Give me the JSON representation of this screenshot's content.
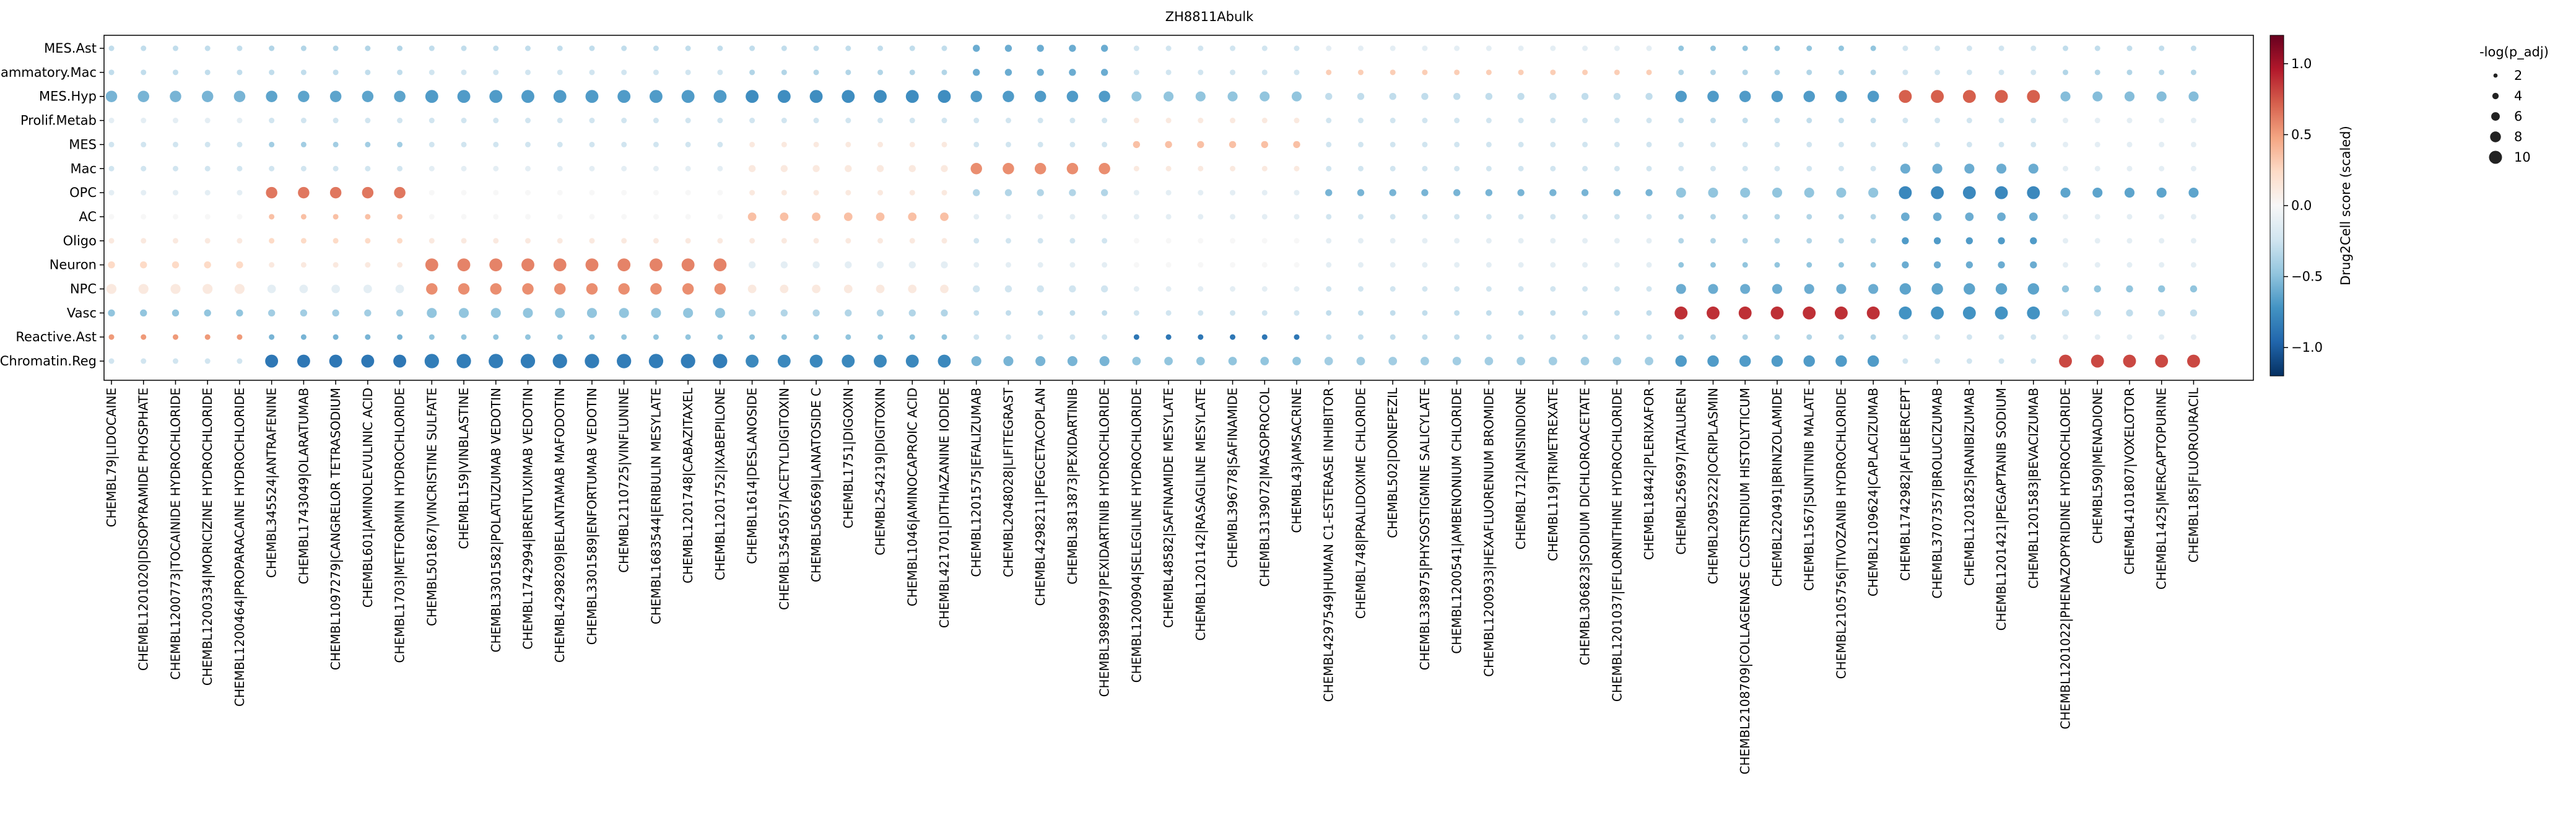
{
  "chart_data": {
    "type": "dotplot",
    "title": "ZH8811Abulk",
    "rows": [
      "MES.Ast",
      "Inflammatory.Mac",
      "MES.Hyp",
      "Prolif.Metab",
      "MES",
      "Mac",
      "OPC",
      "AC",
      "Oligo",
      "Neuron",
      "NPC",
      "Vasc",
      "Reactive.Ast",
      "Chromatin.Reg"
    ],
    "columns": [
      "CHEMBL79|LIDOCAINE",
      "CHEMBL1201020|DISOPYRAMIDE PHOSPHATE",
      "CHEMBL1200773|TOCAINIDE HYDROCHLORIDE",
      "CHEMBL1200334|MORICIZINE HYDROCHLORIDE",
      "CHEMBL1200464|PROPARACAINE HYDROCHLORIDE",
      "CHEMBL345524|ANTRAFENINE",
      "CHEMBL1743049|OLARATUMAB",
      "CHEMBL1097279|CANGRELOR TETRASODIUM",
      "CHEMBL601|AMINOLEVULINIC ACID",
      "CHEMBL1703|METFORMIN HYDROCHLORIDE",
      "CHEMBL501867|VINCRISTINE SULFATE",
      "CHEMBL159|VINBLASTINE",
      "CHEMBL3301582|POLATUZUMAB VEDOTIN",
      "CHEMBL1742994|BRENTUXIMAB VEDOTIN",
      "CHEMBL4298209|BELANTAMAB MAFODOTIN",
      "CHEMBL3301589|ENFORTUMAB VEDOTIN",
      "CHEMBL2110725|VINFLUNINE",
      "CHEMBL1683544|ERIBULIN MESYLATE",
      "CHEMBL1201748|CABAZITAXEL",
      "CHEMBL1201752|IXABEPILONE",
      "CHEMBL1614|DESLANOSIDE",
      "CHEMBL3545057|ACETYLDIGITOXIN",
      "CHEMBL506569|LANATOSIDE C",
      "CHEMBL1751|DIGOXIN",
      "CHEMBL254219|DIGITOXIN",
      "CHEMBL1046|AMINOCAPROIC ACID",
      "CHEMBL421701|DITHIAZANINE IODIDE",
      "CHEMBL1201575|EFALIZUMAB",
      "CHEMBL2048028|LIFITEGRAST",
      "CHEMBL4298211|PEGCETACOPLAN",
      "CHEMBL3813873|PEXIDARTINIB",
      "CHEMBL3989997|PEXIDARTINIB HYDROCHLORIDE",
      "CHEMBL1200904|SELEGILINE HYDROCHLORIDE",
      "CHEMBL48582|SAFINAMIDE MESYLATE",
      "CHEMBL1201142|RASAGILINE MESYLATE",
      "CHEMBL396778|SAFINAMIDE",
      "CHEMBL3139072|MASOPROCOL",
      "CHEMBL43|AMSACRINE",
      "CHEMBL4297549|HUMAN C1-ESTERASE INHIBITOR",
      "CHEMBL748|PRALIDOXIME CHLORIDE",
      "CHEMBL502|DONEPEZIL",
      "CHEMBL338975|PHYSOSTIGMINE SALICYLATE",
      "CHEMBL1200541|AMBENONIUM CHLORIDE",
      "CHEMBL1200933|HEXAFLUORENIUM BROMIDE",
      "CHEMBL712|ANISINDIONE",
      "CHEMBL119|TRIMETREXATE",
      "CHEMBL306823|SODIUM DICHLOROACETATE",
      "CHEMBL1201037|EFLORNITHINE HYDROCHLORIDE",
      "CHEMBL18442|PLERIXAFOR",
      "CHEMBL256997|ATALUREN",
      "CHEMBL2095222|OCRIPLASMIN",
      "CHEMBL2108709|COLLAGENASE CLOSTRIDIUM HISTOLYTICUM",
      "CHEMBL220491|BRINZOLAMIDE",
      "CHEMBL1567|SUNITINIB MALATE",
      "CHEMBL2105756|TIVOZANIB HYDROCHLORIDE",
      "CHEMBL2109624|CAPLACIZUMAB",
      "CHEMBL1742982|AFLIBERCEPT",
      "CHEMBL3707357|BROLUCIZUMAB",
      "CHEMBL1201825|RANIBIZUMAB",
      "CHEMBL1201421|PEGAPTANIB SODIUM",
      "CHEMBL1201583|BEVACIZUMAB",
      "CHEMBL1201022|PHENAZOPYRIDINE HYDROCHLORIDE",
      "CHEMBL590|MENADIONE",
      "CHEMBL4101807|VOXELOTOR",
      "CHEMBL1425|MERCAPTOPURINE",
      "CHEMBL185|FLUOROURACIL"
    ],
    "groups": [
      {
        "columns": [
          0,
          1,
          2,
          3,
          4
        ],
        "values": {
          "MES.Ast": [
            -0.15,
            2
          ],
          "Inflammatory.Mac": [
            -0.15,
            2
          ],
          "MES.Hyp": [
            -0.4,
            6
          ],
          "Prolif.Metab": [
            -0.05,
            2
          ],
          "MES": [
            -0.1,
            2
          ],
          "Mac": [
            -0.1,
            2
          ],
          "OPC": [
            -0.05,
            2
          ],
          "AC": [
            0.0,
            2
          ],
          "Oligo": [
            0.05,
            2
          ],
          "Neuron": [
            0.1,
            3
          ],
          "NPC": [
            0.05,
            5
          ],
          "Vasc": [
            -0.3,
            3
          ],
          "Reactive.Ast": [
            0.35,
            2
          ],
          "Chromatin.Reg": [
            -0.1,
            2
          ]
        }
      },
      {
        "columns": [
          5,
          6,
          7,
          8,
          9
        ],
        "values": {
          "MES.Ast": [
            -0.2,
            2
          ],
          "Inflammatory.Mac": [
            -0.15,
            2
          ],
          "MES.Hyp": [
            -0.5,
            6
          ],
          "Prolif.Metab": [
            -0.1,
            2
          ],
          "MES": [
            -0.25,
            2
          ],
          "Mac": [
            -0.1,
            2
          ],
          "OPC": [
            0.5,
            6
          ],
          "AC": [
            0.2,
            2
          ],
          "Oligo": [
            0.1,
            2
          ],
          "Neuron": [
            0.05,
            2
          ],
          "NPC": [
            -0.05,
            4
          ],
          "Vasc": [
            -0.25,
            3
          ],
          "Reactive.Ast": [
            -0.4,
            2
          ],
          "Chromatin.Reg": [
            -0.85,
            7
          ]
        }
      },
      {
        "columns": [
          10,
          11,
          12,
          13,
          14,
          15,
          16,
          17,
          18,
          19
        ],
        "values": {
          "MES.Ast": [
            -0.15,
            2
          ],
          "Inflammatory.Mac": [
            -0.1,
            2
          ],
          "MES.Hyp": [
            -0.55,
            7
          ],
          "Prolif.Metab": [
            -0.1,
            2
          ],
          "MES": [
            -0.1,
            2
          ],
          "Mac": [
            -0.05,
            2
          ],
          "OPC": [
            0.0,
            2
          ],
          "AC": [
            0.0,
            2
          ],
          "Oligo": [
            0.05,
            2
          ],
          "Neuron": [
            0.45,
            7
          ],
          "NPC": [
            0.4,
            6
          ],
          "Vasc": [
            -0.3,
            5
          ],
          "Reactive.Ast": [
            -0.3,
            2
          ],
          "Chromatin.Reg": [
            -0.8,
            8
          ]
        }
      },
      {
        "columns": [
          20,
          21,
          22,
          23,
          24,
          25,
          26
        ],
        "values": {
          "MES.Ast": [
            -0.15,
            2
          ],
          "Inflammatory.Mac": [
            -0.2,
            2
          ],
          "MES.Hyp": [
            -0.65,
            7
          ],
          "Prolif.Metab": [
            -0.1,
            2
          ],
          "MES": [
            0.05,
            2
          ],
          "Mac": [
            0.05,
            3
          ],
          "OPC": [
            0.05,
            2
          ],
          "AC": [
            0.2,
            4
          ],
          "Oligo": [
            0.05,
            2
          ],
          "Neuron": [
            -0.05,
            3
          ],
          "NPC": [
            0.05,
            4
          ],
          "Vasc": [
            -0.2,
            3
          ],
          "Reactive.Ast": [
            -0.3,
            2
          ],
          "Chromatin.Reg": [
            -0.7,
            7
          ]
        }
      },
      {
        "columns": [
          27,
          28,
          29,
          30,
          31
        ],
        "values": {
          "MES.Ast": [
            -0.45,
            3
          ],
          "Inflammatory.Mac": [
            -0.45,
            3
          ],
          "MES.Hyp": [
            -0.55,
            6
          ],
          "Prolif.Metab": [
            -0.1,
            2
          ],
          "MES": [
            -0.1,
            2
          ],
          "Mac": [
            0.4,
            6
          ],
          "OPC": [
            -0.2,
            3
          ],
          "AC": [
            -0.05,
            2
          ],
          "Oligo": [
            -0.1,
            2
          ],
          "Neuron": [
            -0.05,
            2
          ],
          "NPC": [
            -0.1,
            3
          ],
          "Vasc": [
            -0.15,
            2
          ],
          "Reactive.Ast": [
            -0.1,
            2
          ],
          "Chromatin.Reg": [
            -0.4,
            5
          ]
        }
      },
      {
        "columns": [
          32,
          33,
          34,
          35,
          36,
          37
        ],
        "values": {
          "MES.Ast": [
            -0.1,
            2
          ],
          "Inflammatory.Mac": [
            -0.1,
            2
          ],
          "MES.Hyp": [
            -0.3,
            5
          ],
          "Prolif.Metab": [
            0.05,
            2
          ],
          "MES": [
            0.2,
            3
          ],
          "Mac": [
            0.05,
            2
          ],
          "OPC": [
            -0.05,
            2
          ],
          "AC": [
            -0.05,
            2
          ],
          "Oligo": [
            0.0,
            2
          ],
          "Neuron": [
            0.0,
            2
          ],
          "NPC": [
            -0.05,
            2
          ],
          "Vasc": [
            -0.1,
            2
          ],
          "Reactive.Ast": [
            -0.85,
            2
          ],
          "Chromatin.Reg": [
            -0.3,
            4
          ]
        }
      },
      {
        "columns": [
          38,
          39,
          40,
          41,
          42,
          43,
          44,
          45,
          46,
          47,
          48
        ],
        "values": {
          "MES.Ast": [
            -0.05,
            2
          ],
          "Inflammatory.Mac": [
            0.15,
            2
          ],
          "MES.Hyp": [
            -0.15,
            3
          ],
          "Prolif.Metab": [
            -0.1,
            2
          ],
          "MES": [
            -0.1,
            2
          ],
          "Mac": [
            -0.1,
            2
          ],
          "OPC": [
            -0.4,
            3
          ],
          "AC": [
            -0.1,
            2
          ],
          "Oligo": [
            -0.05,
            2
          ],
          "Neuron": [
            -0.05,
            2
          ],
          "NPC": [
            -0.1,
            2
          ],
          "Vasc": [
            -0.15,
            2
          ],
          "Reactive.Ast": [
            -0.15,
            2
          ],
          "Chromatin.Reg": [
            -0.25,
            4
          ]
        }
      },
      {
        "columns": [
          49,
          50,
          51,
          52,
          53,
          54,
          55
        ],
        "values": {
          "MES.Ast": [
            -0.3,
            2
          ],
          "Inflammatory.Mac": [
            -0.2,
            2
          ],
          "MES.Hyp": [
            -0.55,
            6
          ],
          "Prolif.Metab": [
            -0.15,
            2
          ],
          "MES": [
            -0.1,
            2
          ],
          "Mac": [
            -0.1,
            2
          ],
          "OPC": [
            -0.3,
            5
          ],
          "AC": [
            -0.2,
            2
          ],
          "Oligo": [
            -0.2,
            2
          ],
          "Neuron": [
            -0.3,
            2
          ],
          "NPC": [
            -0.45,
            5
          ],
          "Vasc": [
            0.8,
            7
          ],
          "Reactive.Ast": [
            -0.2,
            2
          ],
          "Chromatin.Reg": [
            -0.55,
            6
          ]
        }
      },
      {
        "columns": [
          56,
          57,
          58,
          59,
          60
        ],
        "values": {
          "MES.Ast": [
            -0.1,
            2
          ],
          "Inflammatory.Mac": [
            -0.1,
            2
          ],
          "MES.Hyp": [
            0.6,
            7
          ],
          "Prolif.Metab": [
            -0.1,
            2
          ],
          "MES": [
            -0.1,
            2
          ],
          "Mac": [
            -0.45,
            5
          ],
          "OPC": [
            -0.7,
            7
          ],
          "AC": [
            -0.45,
            4
          ],
          "Oligo": [
            -0.55,
            3
          ],
          "Neuron": [
            -0.45,
            3
          ],
          "NPC": [
            -0.5,
            6
          ],
          "Vasc": [
            -0.6,
            7
          ],
          "Reactive.Ast": [
            -0.1,
            2
          ],
          "Chromatin.Reg": [
            -0.1,
            2
          ]
        }
      },
      {
        "columns": [
          61,
          62,
          63,
          64,
          65
        ],
        "values": {
          "MES.Ast": [
            -0.15,
            2
          ],
          "Inflammatory.Mac": [
            -0.2,
            2
          ],
          "MES.Hyp": [
            -0.35,
            5
          ],
          "Prolif.Metab": [
            -0.05,
            2
          ],
          "MES": [
            -0.05,
            2
          ],
          "Mac": [
            -0.05,
            2
          ],
          "OPC": [
            -0.5,
            5
          ],
          "AC": [
            -0.05,
            2
          ],
          "Oligo": [
            -0.05,
            2
          ],
          "Neuron": [
            -0.05,
            2
          ],
          "NPC": [
            -0.3,
            3
          ],
          "Vasc": [
            -0.15,
            3
          ],
          "Reactive.Ast": [
            -0.05,
            2
          ],
          "Chromatin.Reg": [
            0.7,
            7
          ]
        }
      }
    ],
    "colorbar": {
      "label": "Drug2Cell score (scaled)",
      "ticks": [
        1.0,
        0.5,
        0.0,
        -0.5,
        -1.0
      ],
      "tick_labels": [
        "1.0",
        "0.5",
        "0.0",
        "−0.5",
        "−1.0"
      ],
      "range": [
        -1.2,
        1.2
      ],
      "colormap": "RdBu_r"
    },
    "size_legend": {
      "title": "-log(p_adj)",
      "values": [
        2,
        4,
        6,
        8,
        10
      ],
      "labels": [
        "2",
        "4",
        "6",
        "8",
        "10"
      ]
    }
  }
}
